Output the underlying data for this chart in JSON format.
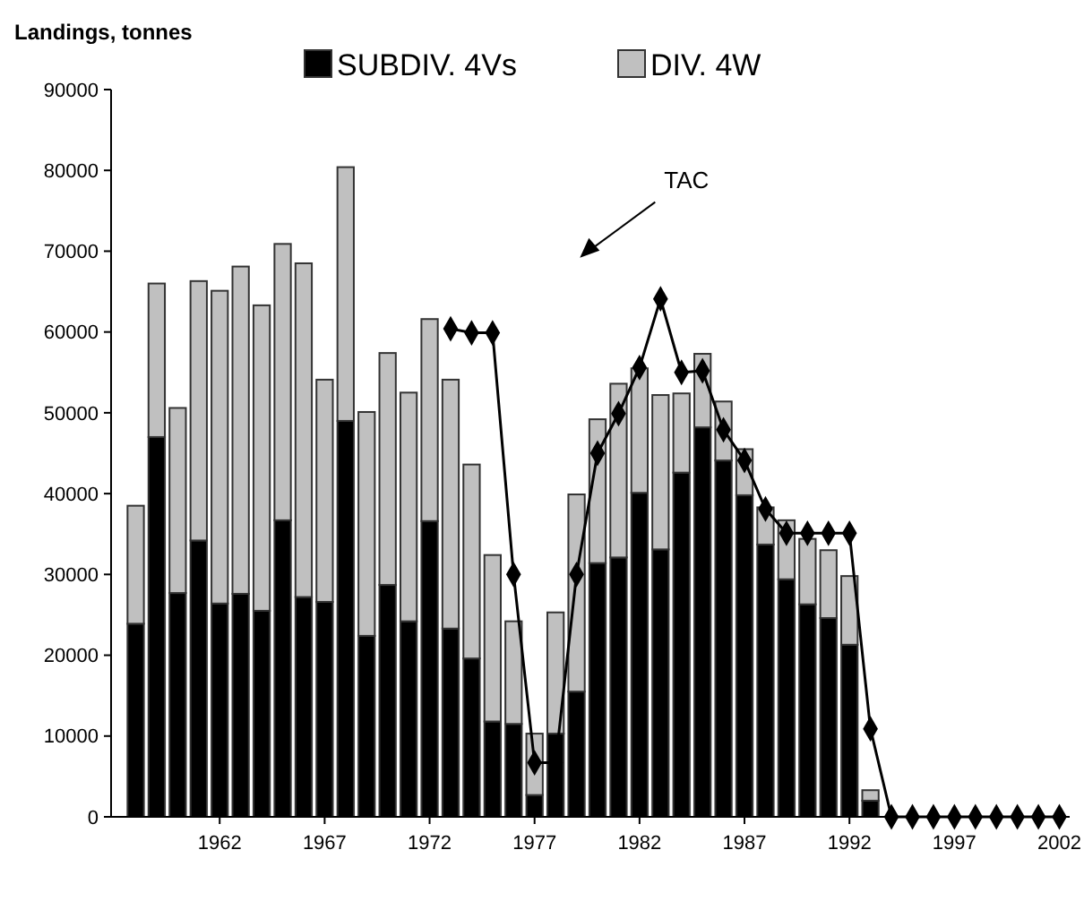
{
  "chart_data": {
    "type": "bar",
    "title": "Landings, tonnes",
    "stacked": true,
    "legend": "top",
    "categories": [
      null,
      null,
      null,
      null,
      "1962",
      null,
      null,
      null,
      null,
      "1967",
      null,
      null,
      null,
      null,
      "1972",
      null,
      null,
      null,
      null,
      "1977",
      null,
      null,
      null,
      null,
      "1982",
      null,
      null,
      null,
      null,
      "1987",
      null,
      null,
      null,
      null,
      "1992",
      null,
      null,
      null,
      null,
      "1997",
      null,
      null,
      null,
      null,
      "2002"
    ],
    "ylim": [
      0,
      90000
    ],
    "yticks": [
      0,
      10000,
      20000,
      30000,
      40000,
      50000,
      60000,
      70000,
      80000,
      90000
    ],
    "grid": false,
    "annotations": [
      "TAC"
    ],
    "series": [
      {
        "name": "SUBDIV. 4Vs",
        "color": "#000000",
        "values": [
          23900,
          47000,
          27700,
          34200,
          26400,
          27600,
          25500,
          36700,
          27200,
          26600,
          49000,
          22400,
          28700,
          24200,
          36600,
          23300,
          19600,
          11800,
          11500,
          2700,
          10300,
          15500,
          31400,
          32100,
          40100,
          33100,
          42600,
          48200,
          44100,
          39800,
          33700,
          29400,
          26300,
          24600,
          21300,
          2000,
          null,
          null,
          null,
          null,
          null,
          null,
          null,
          null,
          null
        ]
      },
      {
        "name": "DIV. 4W",
        "color": "#c0c0c0",
        "values": [
          14600,
          19000,
          22900,
          32100,
          38700,
          40500,
          37800,
          34200,
          41300,
          27500,
          31400,
          27700,
          28700,
          28300,
          25000,
          30800,
          24000,
          20600,
          12700,
          7600,
          15000,
          24400,
          17800,
          21500,
          15400,
          19100,
          9800,
          9100,
          7300,
          5700,
          4600,
          7300,
          8100,
          8400,
          8500,
          1300,
          null,
          null,
          null,
          null,
          null,
          null,
          null,
          null,
          null
        ]
      },
      {
        "type": "line",
        "color": "#000000",
        "marker": "diamond",
        "line_style": "solid",
        "values": [
          null,
          null,
          null,
          null,
          null,
          null,
          null,
          null,
          null,
          null,
          null,
          null,
          null,
          null,
          null,
          60400,
          59900,
          59900,
          30000,
          6700,
          6700,
          30000,
          45000,
          49900,
          55600,
          64100,
          55000,
          55200,
          47900,
          44100,
          38100,
          35100,
          35100,
          35100,
          35100,
          10900,
          0,
          0,
          0,
          0,
          0,
          0,
          0,
          0,
          0
        ]
      }
    ]
  }
}
